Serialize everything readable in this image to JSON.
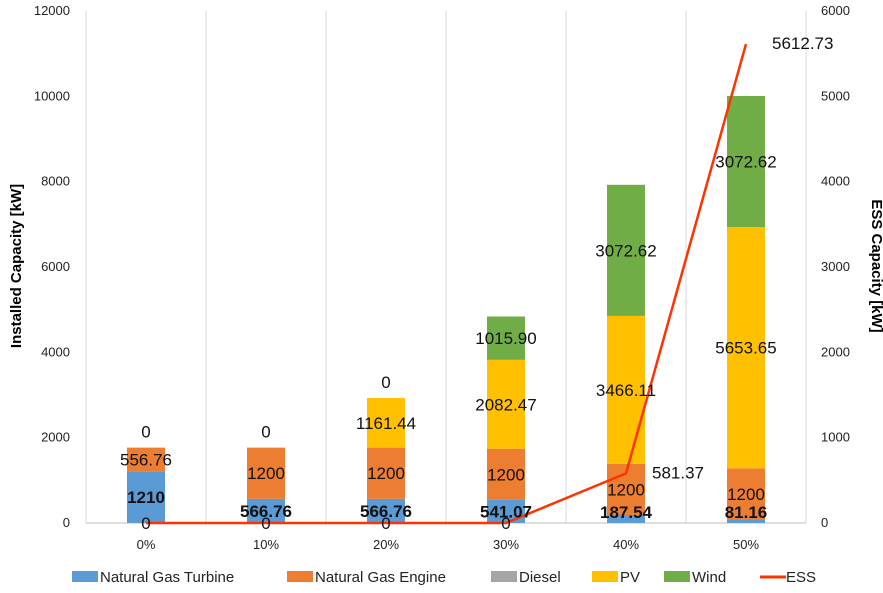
{
  "chart_data": {
    "type": "bar",
    "stacked": true,
    "categories": [
      "0%",
      "10%",
      "20%",
      "30%",
      "40%",
      "50%"
    ],
    "ylabel": "Installed Capacity [kW]",
    "y2label": "ESS Capacity [kW]",
    "ylim": [
      0,
      12000
    ],
    "y2lim": [
      0,
      6000
    ],
    "yticks": [
      "0",
      "2000",
      "4000",
      "6000",
      "8000",
      "10000",
      "12000"
    ],
    "y2ticks": [
      "0",
      "1000",
      "2000",
      "3000",
      "4000",
      "5000",
      "6000"
    ],
    "grid": "vertical",
    "legend_position": "bottom",
    "series": [
      {
        "name": "Natural Gas Turbine",
        "color": "#5B9BD5",
        "values": [
          1210,
          566.76,
          566.76,
          541.07,
          187.54,
          81.16
        ],
        "labels": [
          "1210",
          "566.76",
          "566.76",
          "541.07",
          "187.54",
          "81.16"
        ]
      },
      {
        "name": "Natural Gas Engine",
        "color": "#ED7D31",
        "values": [
          556.76,
          1200,
          1200,
          1200,
          1200,
          1200
        ],
        "labels": [
          "556.76",
          "1200",
          "1200",
          "1200",
          "1200",
          "1200"
        ]
      },
      {
        "name": "Diesel",
        "color": "#A5A5A5",
        "values": [
          0,
          0,
          0,
          0,
          0,
          0
        ],
        "labels": [
          "",
          "",
          "",
          "",
          "",
          ""
        ]
      },
      {
        "name": "PV",
        "color": "#FFC000",
        "values": [
          0,
          0,
          1161.44,
          2082.47,
          3466.11,
          5653.65
        ],
        "labels": [
          "0",
          "0",
          "1161.44",
          "2082.47",
          "3466.11",
          "5653.65"
        ]
      },
      {
        "name": "Wind",
        "color": "#70AD47",
        "values": [
          0,
          0,
          0,
          1015.9,
          3072.62,
          3072.62
        ],
        "labels": [
          "",
          "",
          "0",
          "1015.90",
          "3072.62",
          "3072.62"
        ]
      }
    ],
    "line_series": {
      "name": "ESS",
      "color": "#FF3300",
      "axis": "right",
      "values": [
        0,
        0,
        0,
        0,
        581.37,
        5612.73
      ],
      "labels": [
        "0",
        "0",
        "0",
        "0",
        "581.37",
        "5612.73"
      ]
    }
  }
}
